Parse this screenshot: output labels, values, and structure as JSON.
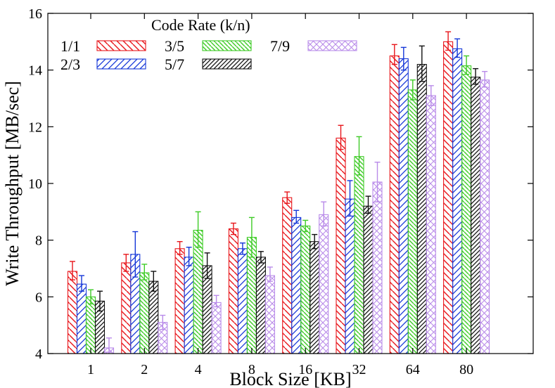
{
  "chart_data": {
    "type": "bar",
    "xlabel": "Block Size [KB]",
    "ylabel": "Write Throughput [MB/sec]",
    "ylim": [
      4,
      16
    ],
    "yticks": [
      4,
      6,
      8,
      10,
      12,
      14,
      16
    ],
    "categories": [
      "1",
      "2",
      "4",
      "8",
      "16",
      "32",
      "64",
      "80"
    ],
    "grid": false,
    "legend": {
      "title": "Code Rate (k/n)",
      "placement": "top-left"
    },
    "series": [
      {
        "name": "1/1",
        "color": "#e8161b",
        "pattern": "diag-down",
        "values": [
          6.9,
          7.2,
          7.7,
          8.4,
          9.5,
          11.6,
          14.5,
          15.0
        ],
        "err_low": [
          6.6,
          6.9,
          7.5,
          8.2,
          9.3,
          11.2,
          14.2,
          14.7
        ],
        "err_high": [
          7.25,
          7.5,
          7.95,
          8.6,
          9.7,
          12.05,
          14.9,
          15.35
        ]
      },
      {
        "name": "2/3",
        "color": "#1537d8",
        "pattern": "diag-up",
        "values": [
          6.45,
          7.5,
          7.4,
          7.7,
          8.8,
          9.45,
          14.4,
          14.75
        ],
        "err_low": [
          6.2,
          6.7,
          7.1,
          7.5,
          8.6,
          8.85,
          14.0,
          14.45
        ],
        "err_high": [
          6.75,
          8.3,
          7.75,
          7.9,
          9.05,
          10.1,
          14.8,
          15.1
        ]
      },
      {
        "name": "3/5",
        "color": "#3ecb26",
        "pattern": "diag-down-dense",
        "values": [
          6.0,
          6.85,
          8.35,
          8.1,
          8.5,
          10.95,
          13.3,
          14.15
        ],
        "err_low": [
          5.75,
          6.6,
          7.75,
          7.4,
          8.3,
          10.3,
          12.95,
          13.85
        ],
        "err_high": [
          6.25,
          7.15,
          9.0,
          8.8,
          8.7,
          11.65,
          13.65,
          14.5
        ]
      },
      {
        "name": "5/7",
        "color": "#111111",
        "pattern": "diag-up-dense",
        "values": [
          5.85,
          6.55,
          7.1,
          7.4,
          7.95,
          9.2,
          14.2,
          13.75
        ],
        "err_low": [
          5.5,
          6.2,
          6.65,
          7.2,
          7.7,
          8.95,
          13.6,
          13.5
        ],
        "err_high": [
          6.2,
          6.9,
          7.55,
          7.6,
          8.2,
          9.55,
          14.85,
          14.05
        ]
      },
      {
        "name": "7/9",
        "color": "#b98be9",
        "pattern": "crosshatch",
        "values": [
          4.2,
          5.1,
          5.8,
          6.75,
          8.9,
          10.05,
          13.1,
          13.65
        ],
        "err_low": [
          4.05,
          4.85,
          5.65,
          6.55,
          8.5,
          9.35,
          12.75,
          13.4
        ],
        "err_high": [
          4.55,
          5.35,
          6.05,
          7.05,
          9.35,
          10.75,
          13.45,
          13.95
        ]
      }
    ]
  }
}
